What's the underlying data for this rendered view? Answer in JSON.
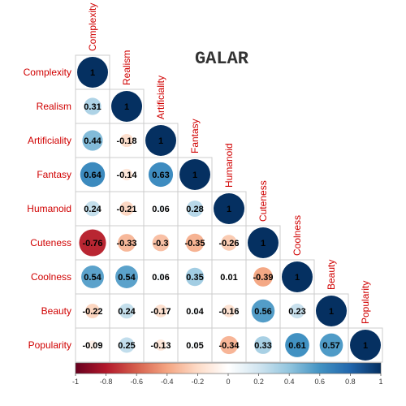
{
  "chart_data": {
    "type": "heatmap",
    "subtype": "correlation-matrix-lower-circle",
    "title": "GALAR",
    "variables": [
      "Complexity",
      "Realism",
      "Artificiality",
      "Fantasy",
      "Humanoid",
      "Cuteness",
      "Coolness",
      "Beauty",
      "Popularity"
    ],
    "matrix": [
      [
        1
      ],
      [
        0.31,
        1
      ],
      [
        0.44,
        -0.18,
        1
      ],
      [
        0.64,
        -0.14,
        0.63,
        1
      ],
      [
        0.24,
        -0.21,
        0.06,
        0.28,
        1
      ],
      [
        -0.76,
        -0.33,
        -0.3,
        -0.35,
        -0.26,
        1
      ],
      [
        0.54,
        0.54,
        0.06,
        0.35,
        0.01,
        -0.39,
        1
      ],
      [
        -0.22,
        0.24,
        -0.17,
        0.04,
        -0.16,
        0.56,
        0.23,
        1
      ],
      [
        -0.09,
        0.25,
        -0.13,
        0.05,
        -0.34,
        0.33,
        0.61,
        0.57,
        1
      ]
    ],
    "colorbar": {
      "range": [
        -1,
        1
      ],
      "ticks": [
        "-1",
        "-0.8",
        "-0.6",
        "-0.4",
        "-0.2",
        "0",
        "0.2",
        "0.4",
        "0.6",
        "0.8",
        "1"
      ],
      "colors": [
        "#67001F",
        "#B2182B",
        "#D6604D",
        "#F4A582",
        "#FDDBC7",
        "#FFFFFF",
        "#D1E5F0",
        "#92C5DE",
        "#4393C3",
        "#2166AC",
        "#053061"
      ]
    },
    "label_color": "#D00000",
    "grid": true,
    "legend": "bottom"
  }
}
